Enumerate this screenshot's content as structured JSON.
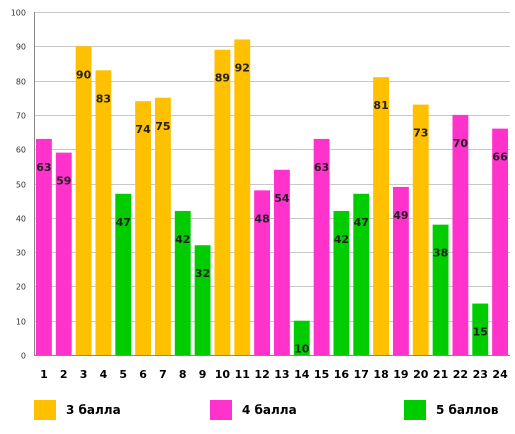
{
  "chart_data": {
    "type": "bar",
    "categories": [
      "1",
      "2",
      "3",
      "4",
      "5",
      "6",
      "7",
      "8",
      "9",
      "10",
      "11",
      "12",
      "13",
      "14",
      "15",
      "16",
      "17",
      "18",
      "19",
      "20",
      "21",
      "22",
      "23",
      "24"
    ],
    "values": [
      63,
      59,
      90,
      83,
      47,
      74,
      75,
      42,
      32,
      89,
      92,
      48,
      54,
      10,
      63,
      42,
      47,
      81,
      49,
      73,
      38,
      70,
      15,
      66
    ],
    "bar_groups": [
      "4 балла",
      "4 балла",
      "3 балла",
      "3 балла",
      "5 баллов",
      "3 балла",
      "3 балла",
      "5 баллов",
      "5 баллов",
      "3 балла",
      "3 балла",
      "4 балла",
      "4 балла",
      "5 баллов",
      "4 балла",
      "5 баллов",
      "5 баллов",
      "3 балла",
      "4 балла",
      "3 балла",
      "5 баллов",
      "4 балла",
      "5 баллов",
      "4 балла"
    ],
    "ylim": [
      0,
      100
    ],
    "yticks": [
      0,
      10,
      20,
      30,
      40,
      50,
      60,
      70,
      80,
      90,
      100
    ],
    "grid": true,
    "legend_position": "bottom",
    "legend": [
      {
        "label": "3 балла",
        "color": "#FFC000"
      },
      {
        "label": "4 балла",
        "color": "#FF33CC"
      },
      {
        "label": "5 баллов",
        "color": "#00CC00"
      }
    ],
    "colors": {
      "3 балла": "#FFC000",
      "4 балла": "#FF33CC",
      "5 баллов": "#00CC00",
      "grid": "#C8C8C8",
      "axis": "#888888"
    }
  }
}
